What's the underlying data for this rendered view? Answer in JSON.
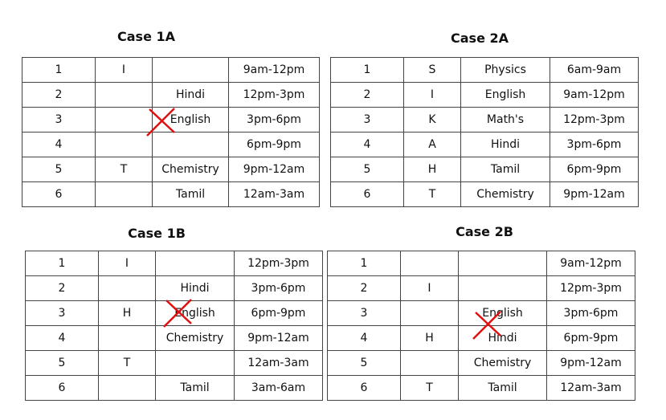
{
  "cross_color": "#e01010",
  "tables": [
    {
      "title": "Case 1A",
      "rows": [
        [
          "1",
          "I",
          "",
          "9am-12pm"
        ],
        [
          "2",
          "",
          "Hindi",
          "12pm-3pm"
        ],
        [
          "3",
          "",
          "English",
          "3pm-6pm"
        ],
        [
          "4",
          "",
          "",
          "6pm-9pm"
        ],
        [
          "5",
          "T",
          "Chemistry",
          "9pm-12am"
        ],
        [
          "6",
          "",
          "Tamil",
          "12am-3am"
        ]
      ],
      "crossed_cell": {
        "row": 3,
        "col": 3
      }
    },
    {
      "title": "Case 2A",
      "rows": [
        [
          "1",
          "S",
          "Physics",
          "6am-9am"
        ],
        [
          "2",
          "I",
          "English",
          "9am-12pm"
        ],
        [
          "3",
          "K",
          "Math's",
          "12pm-3pm"
        ],
        [
          "4",
          "A",
          "Hindi",
          "3pm-6pm"
        ],
        [
          "5",
          "H",
          "Tamil",
          "6pm-9pm"
        ],
        [
          "6",
          "T",
          "Chemistry",
          "9pm-12am"
        ]
      ]
    },
    {
      "title": "Case 1B",
      "rows": [
        [
          "1",
          "I",
          "",
          "12pm-3pm"
        ],
        [
          "2",
          "",
          "Hindi",
          "3pm-6pm"
        ],
        [
          "3",
          "H",
          "English",
          "6pm-9pm"
        ],
        [
          "4",
          "",
          "Chemistry",
          "9pm-12am"
        ],
        [
          "5",
          "T",
          "",
          "12am-3am"
        ],
        [
          "6",
          "",
          "Tamil",
          "3am-6am"
        ]
      ],
      "crossed_cell": {
        "row": 3,
        "col": 3
      }
    },
    {
      "title": "Case 2B",
      "rows": [
        [
          "1",
          "",
          "",
          "9am-12pm"
        ],
        [
          "2",
          "I",
          "",
          "12pm-3pm"
        ],
        [
          "3",
          "",
          "English",
          "3pm-6pm"
        ],
        [
          "4",
          "H",
          "Hindi",
          "6pm-9pm"
        ],
        [
          "5",
          "",
          "Chemistry",
          "9pm-12am"
        ],
        [
          "6",
          "T",
          "Tamil",
          "12am-3am"
        ]
      ],
      "crossed_cell": {
        "row": 3.5,
        "col": 3
      }
    }
  ]
}
